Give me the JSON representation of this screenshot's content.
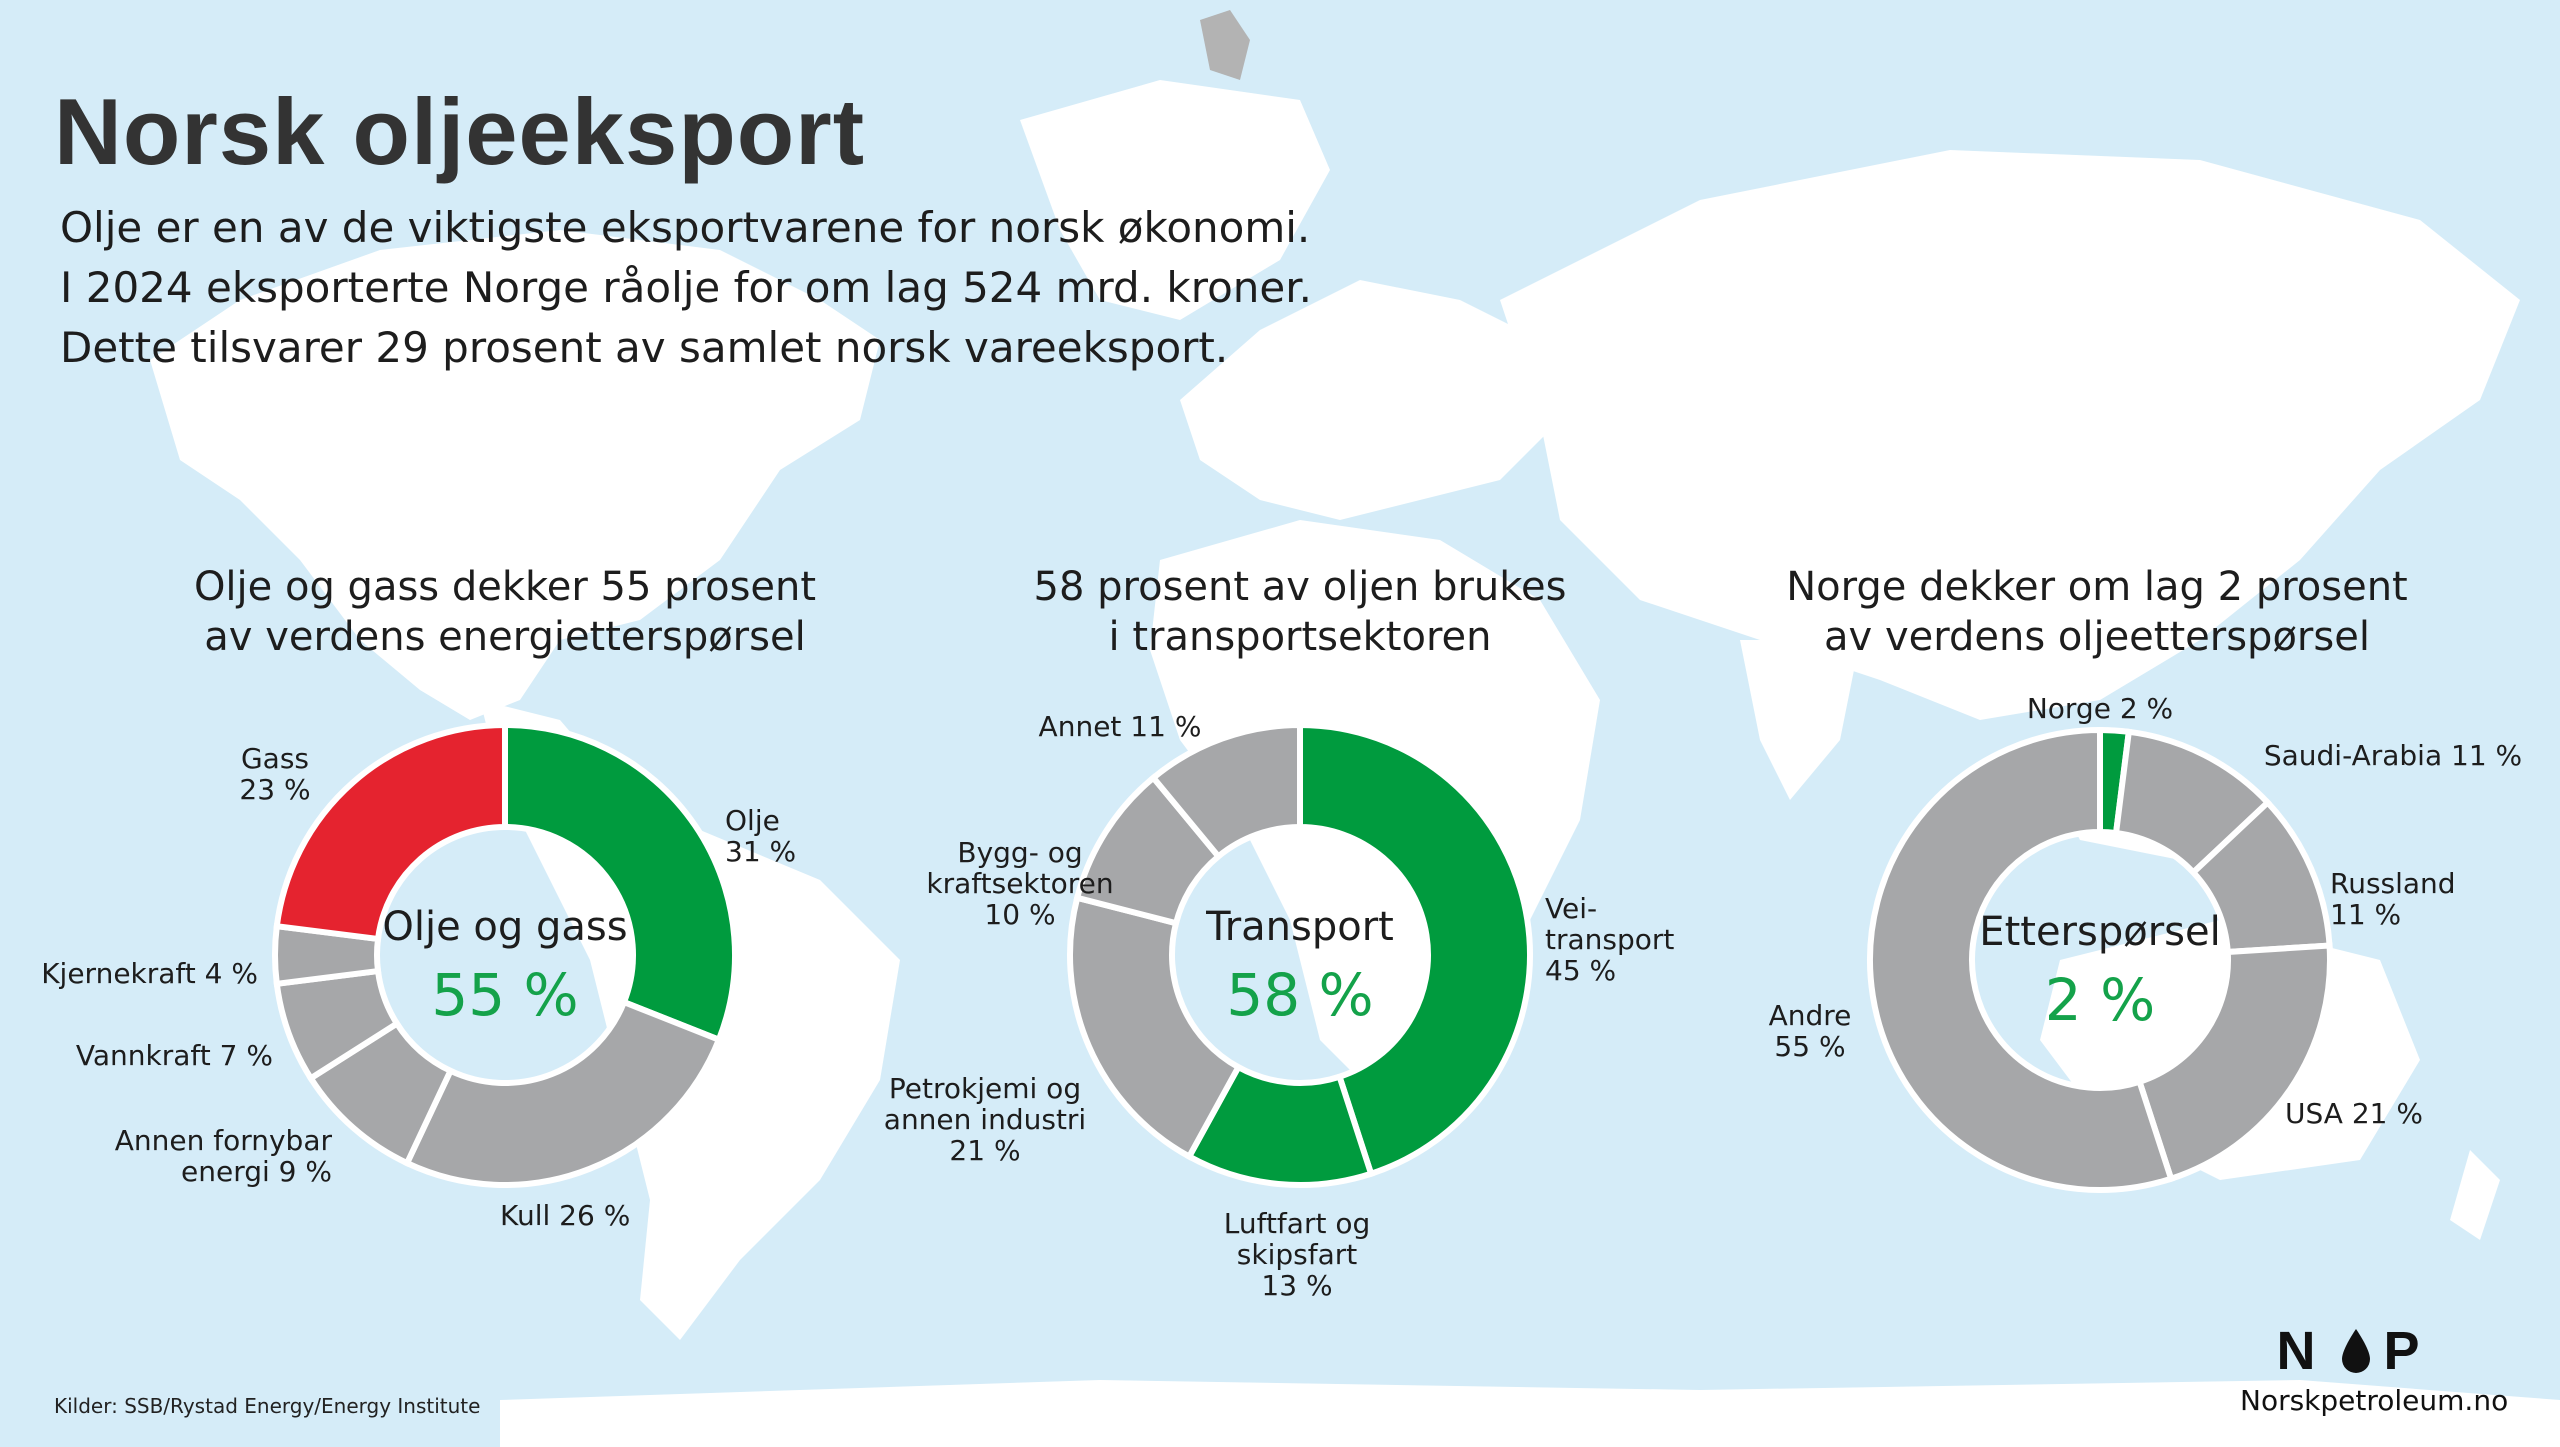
{
  "title": "Norsk oljeeksport",
  "intro_lines": [
    "Olje er en av de viktigste eksportvarene for norsk økonomi.",
    "I 2024 eksporterte Norge råolje for om lag 524 mrd. kroner.",
    "Dette tilsvarer 29 prosent av samlet norsk vareeksport."
  ],
  "colors": {
    "highlight": "#009b3e",
    "red": "#e5232f",
    "grey": "#a6a7a9",
    "text_green": "#14a24a",
    "background": "#d5ecf8"
  },
  "chart_data": [
    {
      "type": "pie",
      "title": [
        "Olje og gass dekker 55 prosent",
        "av verdens energietterspørsel"
      ],
      "center_label": "Olje og gass",
      "center_value": "55 %",
      "slices": [
        {
          "name": "Olje",
          "value": 31,
          "label_lines": [
            "Olje",
            "31 %"
          ],
          "color": "#009b3e"
        },
        {
          "name": "Kull",
          "value": 26,
          "label_lines": [
            "Kull 26 %"
          ],
          "color": "#a6a7a9"
        },
        {
          "name": "Annen fornybar energi",
          "value": 9,
          "label_lines": [
            "Annen fornybar",
            "energi 9 %"
          ],
          "color": "#a6a7a9"
        },
        {
          "name": "Vannkraft",
          "value": 7,
          "label_lines": [
            "Vannkraft 7 %"
          ],
          "color": "#a6a7a9"
        },
        {
          "name": "Kjernekraft",
          "value": 4,
          "label_lines": [
            "Kjernekraft 4 %"
          ],
          "color": "#a6a7a9"
        },
        {
          "name": "Gass",
          "value": 23,
          "label_lines": [
            "Gass",
            "23 %"
          ],
          "color": "#e5232f"
        }
      ]
    },
    {
      "type": "pie",
      "title": [
        "58 prosent av oljen brukes",
        "i transportsektoren"
      ],
      "center_label": "Transport",
      "center_value": "58 %",
      "slices": [
        {
          "name": "Veitransport",
          "value": 45,
          "label_lines": [
            "Vei-",
            "transport",
            "45 %"
          ],
          "color": "#009b3e"
        },
        {
          "name": "Luftfart og skipsfart",
          "value": 13,
          "label_lines": [
            "Luftfart og",
            "skipsfart",
            "13 %"
          ],
          "color": "#009b3e"
        },
        {
          "name": "Petrokjemi og annen industri",
          "value": 21,
          "label_lines": [
            "Petrokjemi og",
            "annen industri",
            "21 %"
          ],
          "color": "#a6a7a9"
        },
        {
          "name": "Bygg- og kraftsektoren",
          "value": 10,
          "label_lines": [
            "Bygg- og",
            "kraftsektoren",
            "10 %"
          ],
          "color": "#a6a7a9"
        },
        {
          "name": "Annet",
          "value": 11,
          "label_lines": [
            "Annet 11 %"
          ],
          "color": "#a6a7a9"
        }
      ]
    },
    {
      "type": "pie",
      "title": [
        "Norge dekker om lag 2 prosent",
        "av verdens oljeetterspørsel"
      ],
      "center_label": "Etterspørsel",
      "center_value": "2 %",
      "slices": [
        {
          "name": "Norge",
          "value": 2,
          "label_lines": [
            "Norge 2 %"
          ],
          "color": "#009b3e"
        },
        {
          "name": "Saudi-Arabia",
          "value": 11,
          "label_lines": [
            "Saudi-Arabia 11 %"
          ],
          "color": "#a6a7a9"
        },
        {
          "name": "Russland",
          "value": 11,
          "label_lines": [
            "Russland",
            "11 %"
          ],
          "color": "#a6a7a9"
        },
        {
          "name": "USA",
          "value": 21,
          "label_lines": [
            "USA 21 %"
          ],
          "color": "#a6a7a9"
        },
        {
          "name": "Andre",
          "value": 55,
          "label_lines": [
            "Andre",
            "55 %"
          ],
          "color": "#a6a7a9"
        }
      ]
    }
  ],
  "source": "Kilder: SSB/Rystad Energy/Energy Institute",
  "logo": {
    "mark_left": "N",
    "mark_right": "P",
    "icon": "oil-drop-icon",
    "url": "Norskpetroleum.no"
  }
}
